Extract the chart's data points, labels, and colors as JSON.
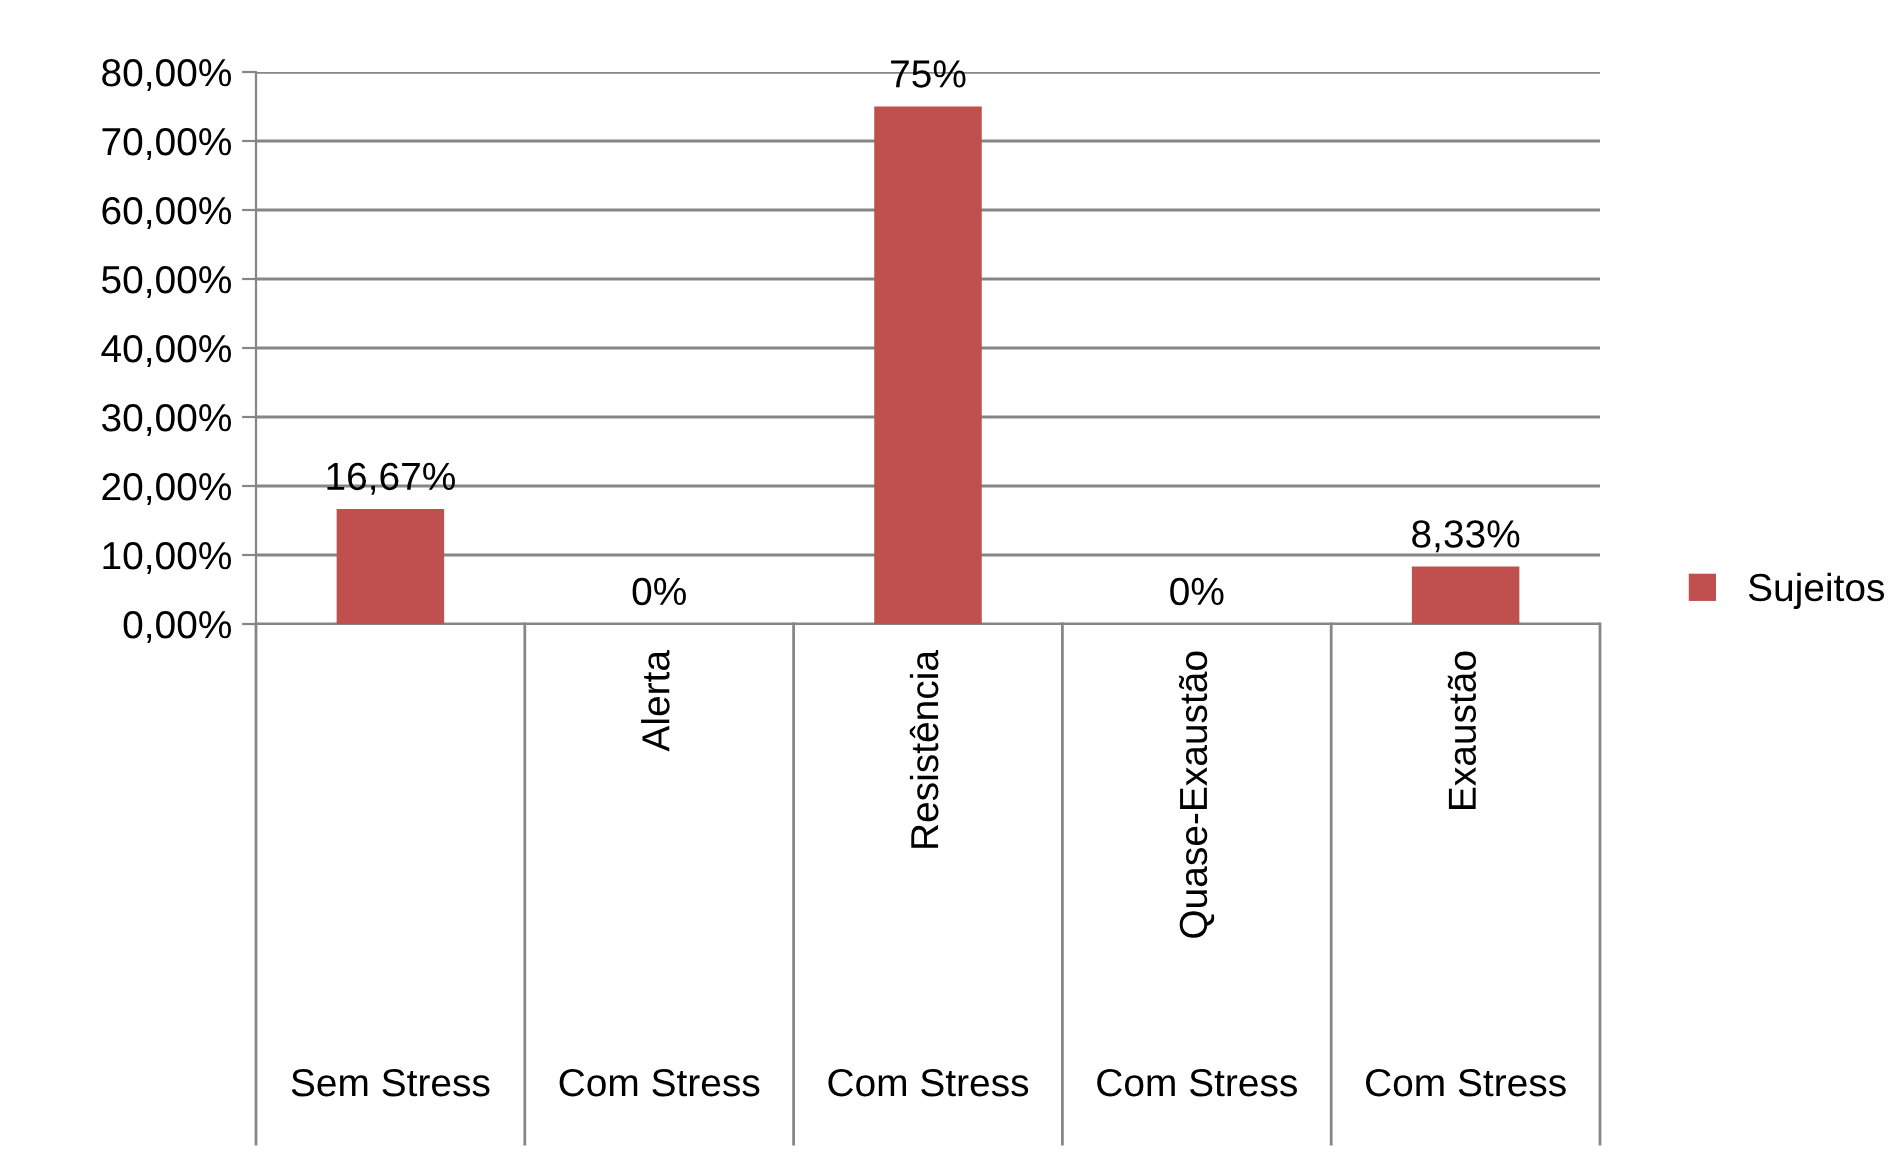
{
  "chart_data": {
    "type": "bar",
    "categories": [
      null,
      "Alerta",
      "Resistência",
      "Quase-Exaustão",
      "Exaustão"
    ],
    "series": [
      {
        "name": "Sujeitos",
        "color": "#c0504d",
        "values": [
          16.67,
          0,
          75,
          0,
          8.33
        ],
        "value_labels": [
          "16,67%",
          "0%",
          "75%",
          "0%",
          "8,33%"
        ]
      }
    ],
    "annotations": [
      "Sem Stress",
      "Com Stress",
      "Com Stress",
      "Com Stress",
      "Com Stress"
    ],
    "ylim": [
      0,
      80
    ],
    "yticks": [
      {
        "value": 0,
        "label": "0,00%"
      },
      {
        "value": 10,
        "label": "10,00%"
      },
      {
        "value": 20,
        "label": "20,00%"
      },
      {
        "value": 30,
        "label": "30,00%"
      },
      {
        "value": 40,
        "label": "40,00%"
      },
      {
        "value": 50,
        "label": "50,00%"
      },
      {
        "value": 60,
        "label": "60,00%"
      },
      {
        "value": 70,
        "label": "70,00%"
      },
      {
        "value": 80,
        "label": "80,00%"
      }
    ],
    "grid": "y",
    "legend": "right"
  }
}
